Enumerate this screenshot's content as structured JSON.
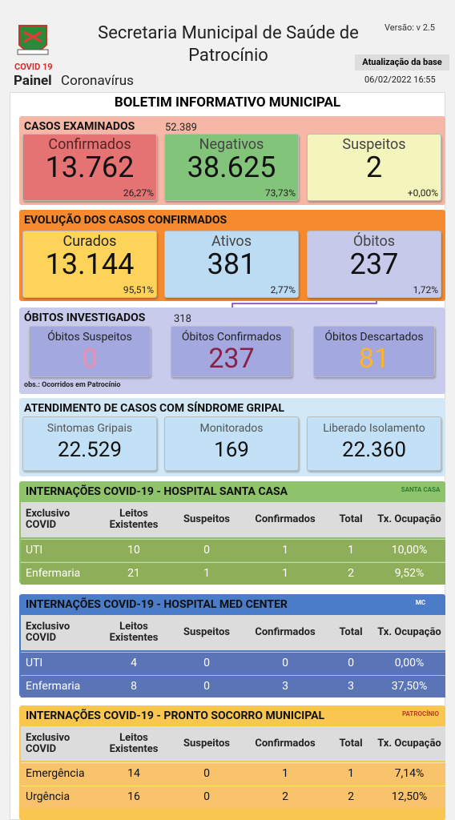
{
  "header": {
    "logo_text": "COVID 19",
    "title": "Secretaria Municipal de Saúde de Patrocínio",
    "version": "Versão: v 2.5",
    "update_label": "Atualização da base",
    "update_date": "06/02/2022 16:55",
    "panel_bold": "Painel",
    "panel_rest": "Coronavírus"
  },
  "boletim_title": "BOLETIM INFORMATIVO MUNICIPAL",
  "casos": {
    "title": "CASOS EXAMINADOS",
    "total": "52.389",
    "cards": [
      {
        "label": "Confirmados",
        "value": "13.762",
        "pct": "26,27%"
      },
      {
        "label": "Negativos",
        "value": "38.625",
        "pct": "73,73%"
      },
      {
        "label": "Suspeitos",
        "value": "2",
        "pct": "+0,00%"
      }
    ]
  },
  "evolucao": {
    "title": "EVOLUÇÃO DOS CASOS CONFIRMADOS",
    "cards": [
      {
        "label": "Curados",
        "value": "13.144",
        "pct": "95,51%"
      },
      {
        "label": "Ativos",
        "value": "381",
        "pct": "2,77%"
      },
      {
        "label": "Óbitos",
        "value": "237",
        "pct": "1,72%"
      }
    ]
  },
  "obitos": {
    "title": "ÓBITOS INVESTIGADOS",
    "total": "318",
    "note": "obs.: Ocorridos em Patrocínio",
    "cards": [
      {
        "label": "Óbitos Suspeitos",
        "value": "0"
      },
      {
        "label": "Óbitos Confirmados",
        "value": "237"
      },
      {
        "label": "Óbitos Descartados",
        "value": "81"
      }
    ]
  },
  "sindrome": {
    "title": "ATENDIMENTO DE CASOS COM SÍNDROME GRIPAL",
    "cards": [
      {
        "label": "Sintomas Gripais",
        "value": "22.529"
      },
      {
        "label": "Monitorados",
        "value": "169"
      },
      {
        "label": "Liberado Isolamento",
        "value": "22.360"
      }
    ]
  },
  "hospitals": [
    {
      "title": "INTERNAÇÕES COVID-19 - HOSPITAL SANTA CASA",
      "logo": "SANTA CASA",
      "header": [
        "Exclusivo COVID",
        "Leitos Existentes",
        "Suspeitos",
        "Confirmados",
        "Total",
        "Tx. Ocupação"
      ],
      "rows": [
        [
          "UTI",
          "10",
          "0",
          "1",
          "1",
          "10,00%"
        ],
        [
          "Enfermaria",
          "21",
          "1",
          "1",
          "2",
          "9,52%"
        ]
      ]
    },
    {
      "title": "INTERNAÇÕES COVID-19 - HOSPITAL MED CENTER",
      "logo": "MC",
      "header": [
        "Exclusivo COVID",
        "Leitos Existentes",
        "Suspeitos",
        "Confirmados",
        "Total",
        "Tx. Ocupação"
      ],
      "rows": [
        [
          "UTI",
          "4",
          "0",
          "0",
          "0",
          "0,00%"
        ],
        [
          "Enfermaria",
          "8",
          "0",
          "3",
          "3",
          "37,50%"
        ]
      ]
    },
    {
      "title": "INTERNAÇÕES COVID-19 - PRONTO SOCORRO MUNICIPAL",
      "logo": "PATROCÍNIO",
      "header": [
        "Exclusivo COVID",
        "Leitos Existentes",
        "Suspeitos",
        "Confirmados",
        "Total",
        "Tx. Ocupação"
      ],
      "rows": [
        [
          "Emergência",
          "14",
          "0",
          "1",
          "1",
          "7,14%"
        ],
        [
          "Urgência",
          "16",
          "0",
          "2",
          "2",
          "12,50%"
        ]
      ]
    }
  ]
}
